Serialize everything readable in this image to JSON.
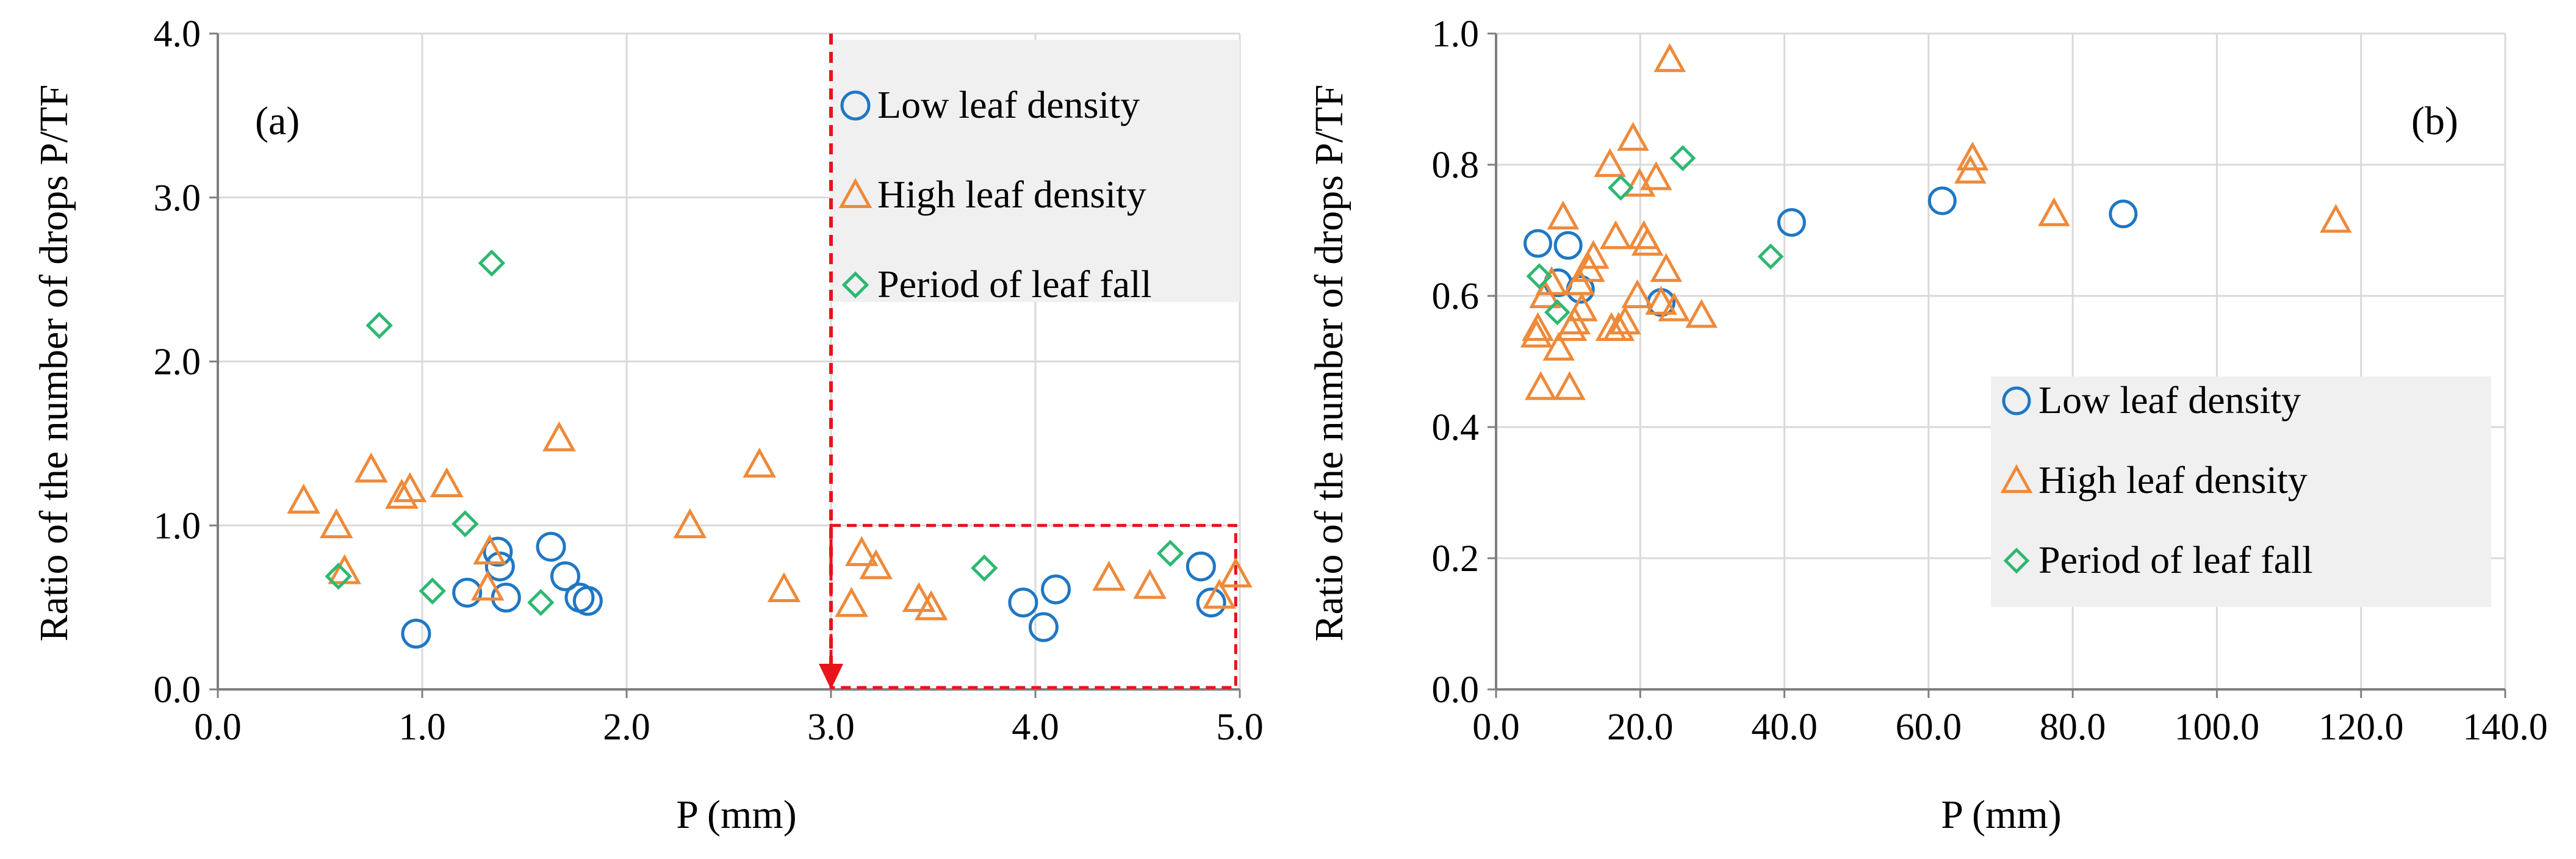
{
  "colors": {
    "low": "#1f77c4",
    "high": "#ee8a3a",
    "fall": "#2eb872",
    "grid": "#d9d9d9",
    "axis": "#7f7f7f",
    "legend_bg": "#f0f0f0",
    "marker_line": "#e8131b"
  },
  "chart_data": [
    {
      "type": "scatter",
      "panel_label": "(a)",
      "xlabel": "P (mm)",
      "ylabel": "Ratio of the number of drops P/TF",
      "xlim": [
        0,
        5
      ],
      "ylim": [
        0,
        4
      ],
      "xticks": [
        "0.0",
        "1.0",
        "2.0",
        "3.0",
        "4.0",
        "5.0"
      ],
      "yticks": [
        "0.0",
        "1.0",
        "2.0",
        "3.0",
        "4.0"
      ],
      "grid": true,
      "legend_position": "top-right",
      "annotation": {
        "vertical_line_x": 3.0,
        "box_x": [
          3.0,
          4.98
        ],
        "box_y": [
          0.0,
          1.0
        ]
      },
      "series": [
        {
          "name": "Low leaf density",
          "marker": "circle",
          "color": "#1f77c4",
          "points": [
            [
              0.97,
              0.34
            ],
            [
              1.22,
              0.59
            ],
            [
              1.37,
              0.84
            ],
            [
              1.38,
              0.75
            ],
            [
              1.41,
              0.56
            ],
            [
              1.63,
              0.87
            ],
            [
              1.7,
              0.69
            ],
            [
              1.77,
              0.56
            ],
            [
              1.81,
              0.54
            ],
            [
              3.94,
              0.53
            ],
            [
              4.04,
              0.38
            ],
            [
              4.1,
              0.61
            ],
            [
              4.81,
              0.75
            ],
            [
              4.86,
              0.53
            ]
          ]
        },
        {
          "name": "High leaf density",
          "marker": "triangle",
          "color": "#ee8a3a",
          "points": [
            [
              0.42,
              1.15
            ],
            [
              0.58,
              1.0
            ],
            [
              0.62,
              0.72
            ],
            [
              0.75,
              1.34
            ],
            [
              0.9,
              1.18
            ],
            [
              0.94,
              1.22
            ],
            [
              1.12,
              1.25
            ],
            [
              1.32,
              0.62
            ],
            [
              1.33,
              0.84
            ],
            [
              1.67,
              1.53
            ],
            [
              2.31,
              1.0
            ],
            [
              2.65,
              1.37
            ],
            [
              2.77,
              0.61
            ],
            [
              3.1,
              0.52
            ],
            [
              3.15,
              0.83
            ],
            [
              3.22,
              0.75
            ],
            [
              3.43,
              0.55
            ],
            [
              3.49,
              0.5
            ],
            [
              4.36,
              0.68
            ],
            [
              4.56,
              0.63
            ],
            [
              4.9,
              0.57
            ],
            [
              4.98,
              0.7
            ]
          ]
        },
        {
          "name": "Period of leaf fall",
          "marker": "diamond",
          "color": "#2eb872",
          "points": [
            [
              0.59,
              0.69
            ],
            [
              0.79,
              2.22
            ],
            [
              1.05,
              0.6
            ],
            [
              1.21,
              1.01
            ],
            [
              1.34,
              2.6
            ],
            [
              1.58,
              0.53
            ],
            [
              3.75,
              0.74
            ],
            [
              4.66,
              0.83
            ]
          ]
        }
      ]
    },
    {
      "type": "scatter",
      "panel_label": "(b)",
      "xlabel": "P (mm)",
      "ylabel": "Ratio of the number of drops P/TF",
      "xlim": [
        0,
        140
      ],
      "ylim": [
        0,
        1
      ],
      "xticks": [
        "0.0",
        "20.0",
        "40.0",
        "60.0",
        "80.0",
        "100.0",
        "120.0",
        "140.0"
      ],
      "yticks": [
        "0.0",
        "0.2",
        "0.4",
        "0.6",
        "0.8",
        "1.0"
      ],
      "grid": true,
      "legend_position": "bottom-right",
      "series": [
        {
          "name": "Low leaf density",
          "marker": "circle",
          "color": "#1f77c4",
          "points": [
            [
              5.8,
              0.68
            ],
            [
              8.6,
              0.62
            ],
            [
              10.0,
              0.677
            ],
            [
              11.7,
              0.61
            ],
            [
              22.9,
              0.59
            ],
            [
              41.0,
              0.712
            ],
            [
              61.9,
              0.745
            ],
            [
              87.0,
              0.725
            ]
          ]
        },
        {
          "name": "High leaf density",
          "marker": "triangle",
          "color": "#ee8a3a",
          "points": [
            [
              5.6,
              0.54
            ],
            [
              5.8,
              0.55
            ],
            [
              6.2,
              0.46
            ],
            [
              6.8,
              0.6
            ],
            [
              7.7,
              0.62
            ],
            [
              8.7,
              0.52
            ],
            [
              9.3,
              0.72
            ],
            [
              10.2,
              0.46
            ],
            [
              10.4,
              0.55
            ],
            [
              10.9,
              0.56
            ],
            [
              11.5,
              0.62
            ],
            [
              11.9,
              0.58
            ],
            [
              12.9,
              0.64
            ],
            [
              13.5,
              0.66
            ],
            [
              15.8,
              0.8
            ],
            [
              16.0,
              0.55
            ],
            [
              16.6,
              0.69
            ],
            [
              17.0,
              0.55
            ],
            [
              17.9,
              0.56
            ],
            [
              19.0,
              0.84
            ],
            [
              19.6,
              0.6
            ],
            [
              19.9,
              0.77
            ],
            [
              20.5,
              0.69
            ],
            [
              21.0,
              0.68
            ],
            [
              22.2,
              0.78
            ],
            [
              22.9,
              0.59
            ],
            [
              23.6,
              0.64
            ],
            [
              24.1,
              0.96
            ],
            [
              24.7,
              0.58
            ],
            [
              28.5,
              0.57
            ],
            [
              65.8,
              0.79
            ],
            [
              66.1,
              0.81
            ],
            [
              77.4,
              0.725
            ],
            [
              116.5,
              0.715
            ]
          ]
        },
        {
          "name": "Period of leaf fall",
          "marker": "diamond",
          "color": "#2eb872",
          "points": [
            [
              6.0,
              0.63
            ],
            [
              8.5,
              0.575
            ],
            [
              17.3,
              0.765
            ],
            [
              25.9,
              0.81
            ],
            [
              38.1,
              0.66
            ]
          ]
        }
      ]
    }
  ]
}
